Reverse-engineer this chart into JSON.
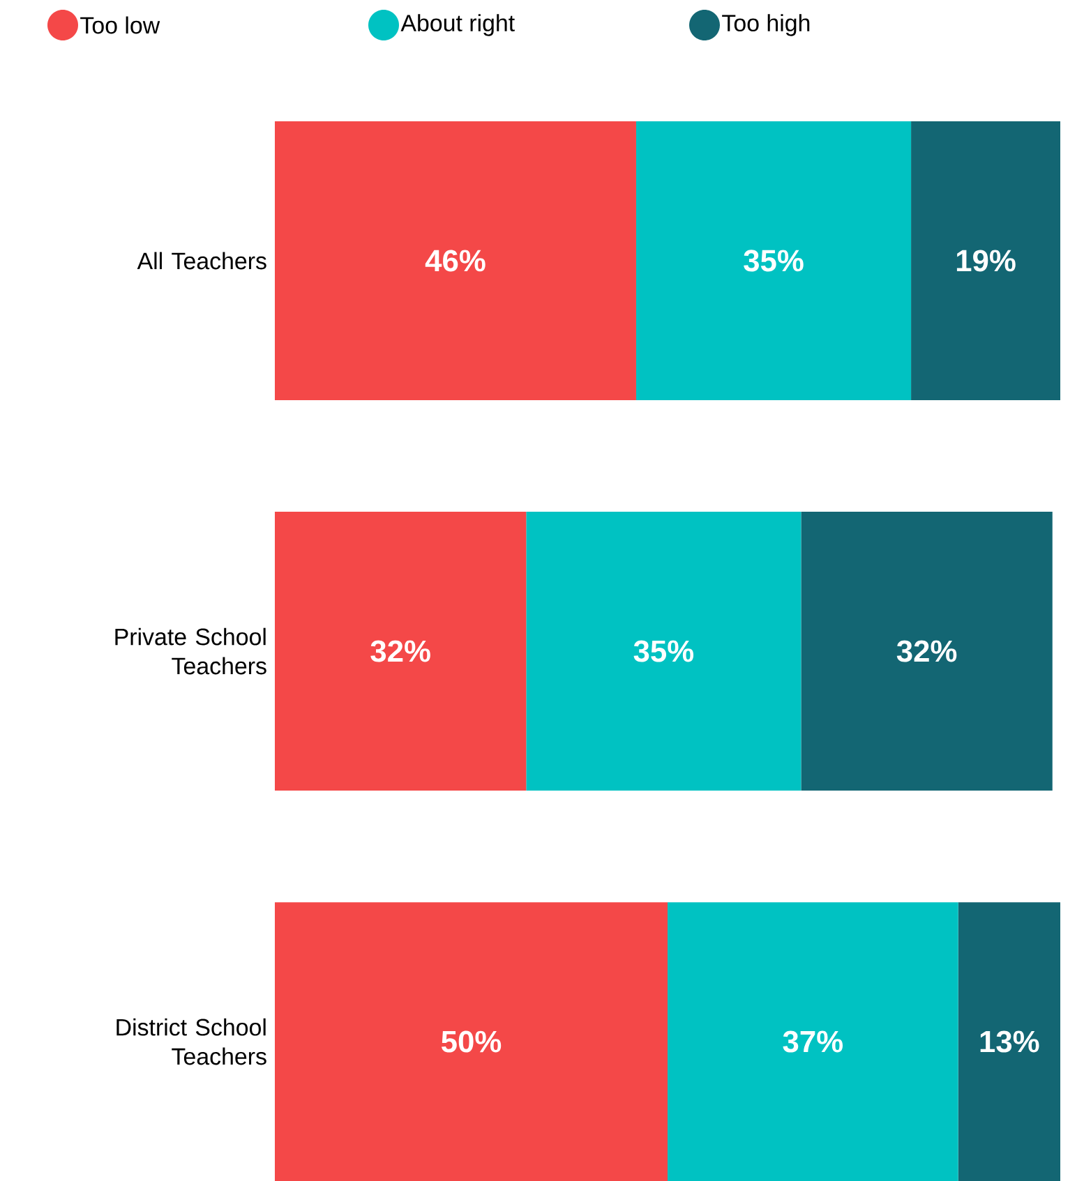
{
  "chart_data": {
    "type": "bar",
    "orientation": "horizontal",
    "stacked": true,
    "categories": [
      "All Teachers",
      "Private School Teachers",
      "District School Teachers"
    ],
    "series": [
      {
        "name": "Too low",
        "color": "#f44848",
        "values": [
          46,
          32,
          50
        ],
        "value_labels": [
          "46%",
          "32%",
          "50%"
        ]
      },
      {
        "name": "About right",
        "color": "#00c2c2",
        "values": [
          35,
          35,
          37
        ],
        "value_labels": [
          "35%",
          "35%",
          "37%"
        ]
      },
      {
        "name": "Too high",
        "color": "#136673",
        "values": [
          19,
          32,
          13
        ],
        "value_labels": [
          "19%",
          "32%",
          "13%"
        ]
      }
    ],
    "xlim": [
      0,
      100
    ],
    "tick_labels": "y",
    "legend": "top left"
  }
}
